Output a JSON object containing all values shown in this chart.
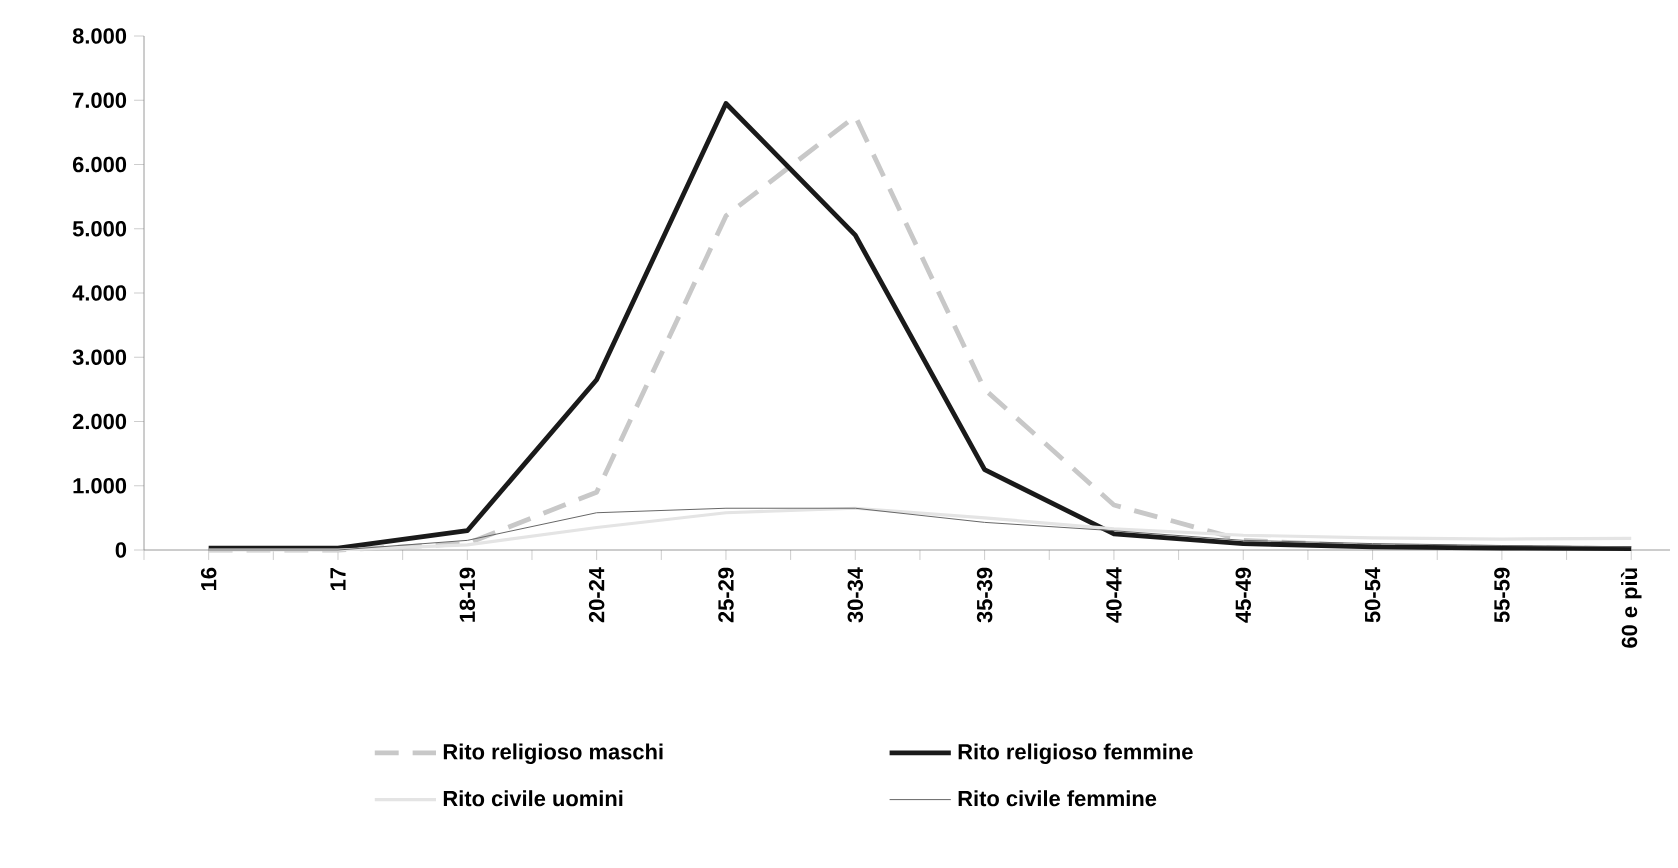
{
  "chart_data": {
    "type": "line",
    "categories": [
      "16",
      "17",
      "18-19",
      "20-24",
      "25-29",
      "30-34",
      "35-39",
      "40-44",
      "45-49",
      "50-54",
      "55-59",
      "60 e più"
    ],
    "series": [
      {
        "name": "Rito religioso maschi",
        "color": "#c8c8c8",
        "line_style": "dashed",
        "values": [
          0,
          0,
          100,
          900,
          5200,
          6750,
          2500,
          700,
          150,
          60,
          40,
          20
        ]
      },
      {
        "name": "Rito religioso femmine",
        "color": "#1a1a1a",
        "line_style": "solid",
        "values": [
          30,
          30,
          300,
          2650,
          6950,
          4900,
          1250,
          250,
          100,
          50,
          30,
          20
        ]
      },
      {
        "name": "Rito civile uomini",
        "color": "#e4e4e4",
        "line_style": "solid",
        "values": [
          0,
          0,
          80,
          350,
          580,
          650,
          500,
          330,
          230,
          190,
          170,
          180
        ]
      },
      {
        "name": "Rito civile femmine",
        "color": "#666666",
        "line_style": "solid",
        "values": [
          0,
          0,
          150,
          580,
          650,
          650,
          430,
          300,
          150,
          100,
          70,
          50
        ]
      }
    ],
    "ylim": [
      0,
      8000
    ],
    "yticks": [
      {
        "value": 0,
        "label": "0"
      },
      {
        "value": 1000,
        "label": "1.000"
      },
      {
        "value": 2000,
        "label": "2.000"
      },
      {
        "value": 3000,
        "label": "3.000"
      },
      {
        "value": 4000,
        "label": "4.000"
      },
      {
        "value": 5000,
        "label": "5.000"
      },
      {
        "value": 6000,
        "label": "6.000"
      },
      {
        "value": 7000,
        "label": "7.000"
      },
      {
        "value": 8000,
        "label": "8.000"
      }
    ],
    "grid": false,
    "legend": "bottom",
    "marker": "none"
  }
}
